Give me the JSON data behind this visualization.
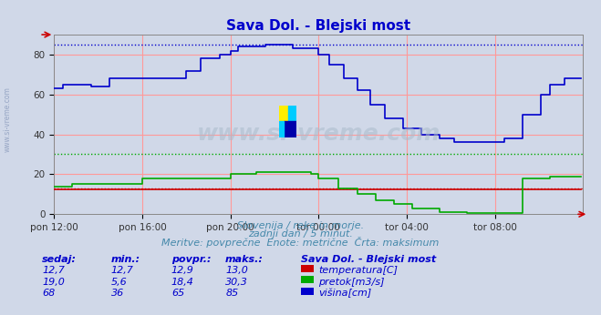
{
  "title": "Sava Dol. - Blejski most",
  "title_color": "#0000cc",
  "bg_color": "#d0d8e8",
  "grid_color_major": "#ff9999",
  "ylim": [
    0,
    90
  ],
  "yticks": [
    0,
    20,
    40,
    60,
    80
  ],
  "xtick_labels": [
    "pon 12:00",
    "pon 16:00",
    "pon 20:00",
    "tor 00:00",
    "tor 04:00",
    "tor 08:00"
  ],
  "xtick_positions": [
    0,
    48,
    96,
    144,
    192,
    240
  ],
  "watermark": "www.si-vreme.com",
  "subtitle1": "Slovenija / reke in morje.",
  "subtitle2": "zadnji dan / 5 minut.",
  "subtitle3": "Meritve: povprečne  Enote: metrične  Črta: maksimum",
  "table_header": [
    "sedaj:",
    "min.:",
    "povpr.:",
    "maks.:",
    "Sava Dol. - Blejski most"
  ],
  "table_rows": [
    [
      "12,7",
      "12,7",
      "12,9",
      "13,0",
      "temperatura[C]",
      "#cc0000"
    ],
    [
      "19,0",
      "5,6",
      "18,4",
      "30,3",
      "pretok[m3/s]",
      "#00aa00"
    ],
    [
      "68",
      "36",
      "65",
      "85",
      "višina[cm]",
      "#0000cc"
    ]
  ],
  "temp_color": "#cc0000",
  "flow_color": "#00aa00",
  "height_color": "#0000cc",
  "max_temp": 13.0,
  "max_flow": 30.3,
  "max_height": 85
}
